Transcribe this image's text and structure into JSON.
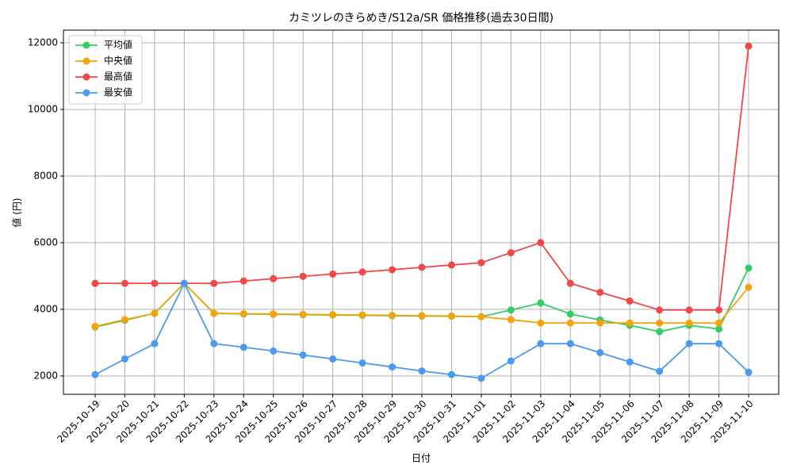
{
  "chart_data": {
    "type": "line",
    "title": "カミツレのきらめき/S12a/SR 価格推移(過去30日間)",
    "xlabel": "日付",
    "ylabel": "値 (円)",
    "x": [
      "2025-10-19",
      "2025-10-20",
      "2025-10-21",
      "2025-10-22",
      "2025-10-23",
      "2025-10-24",
      "2025-10-25",
      "2025-10-26",
      "2025-10-27",
      "2025-10-28",
      "2025-10-29",
      "2025-10-30",
      "2025-10-31",
      "2025-11-01",
      "2025-11-02",
      "2025-11-03",
      "2025-11-04",
      "2025-11-05",
      "2025-11-06",
      "2025-11-07",
      "2025-11-08",
      "2025-11-09",
      "2025-11-10"
    ],
    "series": [
      {
        "name": "平均値",
        "color": "#33cc66",
        "values": [
          3470,
          3670,
          3880,
          4780,
          3880,
          3860,
          3850,
          3840,
          3830,
          3820,
          3810,
          3800,
          3790,
          3780,
          3980,
          4190,
          3860,
          3680,
          3520,
          3330,
          3520,
          3410,
          5240
        ]
      },
      {
        "name": "中央値",
        "color": "#f5a30a",
        "values": [
          3490,
          3690,
          3880,
          4780,
          3880,
          3870,
          3860,
          3850,
          3840,
          3830,
          3820,
          3810,
          3800,
          3780,
          3690,
          3590,
          3590,
          3590,
          3590,
          3590,
          3590,
          3590,
          4660
        ]
      },
      {
        "name": "最高値",
        "color": "#f04848",
        "values": [
          4780,
          4780,
          4780,
          4780,
          4780,
          4850,
          4920,
          4990,
          5060,
          5120,
          5190,
          5260,
          5330,
          5400,
          5700,
          6000,
          4780,
          4510,
          4250,
          3980,
          3980,
          3980,
          11900
        ]
      },
      {
        "name": "最安値",
        "color": "#4a9af0",
        "values": [
          2040,
          2510,
          2970,
          4780,
          2970,
          2860,
          2750,
          2630,
          2510,
          2390,
          2270,
          2150,
          2040,
          1930,
          2450,
          2970,
          2970,
          2700,
          2420,
          2140,
          2970,
          2970,
          2110
        ]
      }
    ],
    "ylim": [
      1450,
      12380
    ],
    "yticks": [
      2000,
      4000,
      6000,
      8000,
      10000,
      12000
    ],
    "grid": true,
    "legend": "upper left"
  }
}
